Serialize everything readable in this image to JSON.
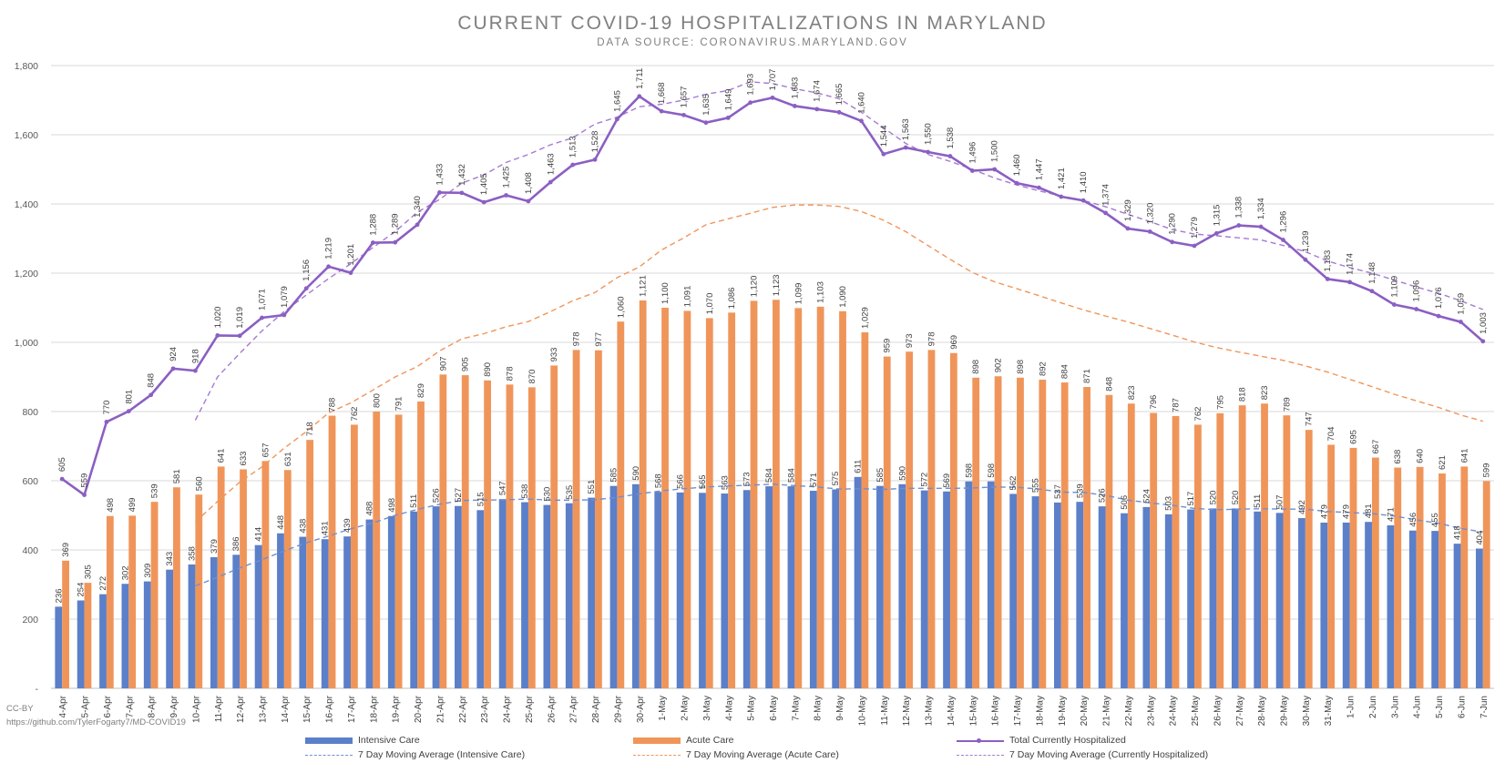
{
  "chart_data": {
    "type": "bar",
    "title": "CURRENT COVID-19 HOSPITALIZATIONS IN MARYLAND",
    "subtitle": "DATA SOURCE: CORONAVIRUS.MARYLAND.GOV",
    "ylim": [
      0,
      1800
    ],
    "y_ticks": [
      0,
      200,
      400,
      600,
      800,
      1000,
      1200,
      1400,
      1600,
      1800
    ],
    "y_tick_labels": [
      "-",
      "200",
      "400",
      "600",
      "800",
      "1,000",
      "1,200",
      "1,400",
      "1,600",
      "1,800"
    ],
    "grid": true,
    "legend_position": "bottom",
    "categories": [
      "4-Apr",
      "5-Apr",
      "6-Apr",
      "7-Apr",
      "8-Apr",
      "9-Apr",
      "10-Apr",
      "11-Apr",
      "12-Apr",
      "13-Apr",
      "14-Apr",
      "15-Apr",
      "16-Apr",
      "17-Apr",
      "18-Apr",
      "19-Apr",
      "20-Apr",
      "21-Apr",
      "22-Apr",
      "23-Apr",
      "24-Apr",
      "25-Apr",
      "26-Apr",
      "27-Apr",
      "28-Apr",
      "29-Apr",
      "30-Apr",
      "1-May",
      "2-May",
      "3-May",
      "4-May",
      "5-May",
      "6-May",
      "7-May",
      "8-May",
      "9-May",
      "10-May",
      "11-May",
      "12-May",
      "13-May",
      "14-May",
      "15-May",
      "16-May",
      "17-May",
      "18-May",
      "19-May",
      "20-May",
      "21-May",
      "22-May",
      "23-May",
      "24-May",
      "25-May",
      "26-May",
      "27-May",
      "28-May",
      "29-May",
      "30-May",
      "31-May",
      "1-Jun",
      "2-Jun",
      "3-Jun",
      "4-Jun",
      "5-Jun",
      "6-Jun",
      "7-Jun"
    ],
    "series": [
      {
        "name": "Intensive Care",
        "kind": "bar",
        "color": "#5b7fc9",
        "values": [
          236,
          254,
          272,
          302,
          309,
          343,
          358,
          379,
          386,
          414,
          448,
          438,
          431,
          439,
          488,
          498,
          511,
          526,
          527,
          515,
          547,
          538,
          530,
          535,
          551,
          585,
          590,
          568,
          566,
          565,
          563,
          573,
          584,
          584,
          571,
          575,
          611,
          585,
          590,
          572,
          569,
          598,
          598,
          562,
          555,
          537,
          539,
          526,
          506,
          524,
          503,
          517,
          520,
          520,
          511,
          507,
          492,
          479,
          479,
          481,
          471,
          456,
          455,
          418,
          404
        ]
      },
      {
        "name": "Acute Care",
        "kind": "bar",
        "color": "#f0955a",
        "values": [
          369,
          305,
          498,
          499,
          539,
          581,
          560,
          641,
          633,
          657,
          631,
          718,
          788,
          762,
          800,
          791,
          829,
          907,
          905,
          890,
          878,
          870,
          933,
          978,
          977,
          1060,
          1121,
          1100,
          1091,
          1070,
          1086,
          1120,
          1123,
          1099,
          1103,
          1090,
          1029,
          959,
          973,
          978,
          969,
          898,
          902,
          898,
          892,
          884,
          871,
          848,
          823,
          796,
          787,
          762,
          795,
          818,
          823,
          789,
          747,
          704,
          695,
          667,
          638,
          640,
          621,
          641,
          599
        ]
      },
      {
        "name": "Total Currently Hospitalized",
        "kind": "line",
        "color": "#8b5fc2",
        "values": [
          605,
          559,
          770,
          801,
          848,
          924,
          918,
          1020,
          1019,
          1071,
          1079,
          1156,
          1219,
          1201,
          1288,
          1289,
          1340,
          1433,
          1432,
          1405,
          1425,
          1408,
          1463,
          1513,
          1528,
          1645,
          1711,
          1668,
          1657,
          1635,
          1649,
          1693,
          1707,
          1683,
          1674,
          1665,
          1640,
          1544,
          1563,
          1550,
          1538,
          1496,
          1500,
          1460,
          1447,
          1421,
          1410,
          1374,
          1329,
          1320,
          1290,
          1279,
          1315,
          1338,
          1334,
          1296,
          1239,
          1183,
          1174,
          1148,
          1109,
          1096,
          1076,
          1059,
          1003
        ]
      },
      {
        "name": "7 Day Moving Average (Intensive Care)",
        "kind": "dashed",
        "color": "#6f8fd0",
        "values": [
          null,
          null,
          null,
          null,
          null,
          null,
          296,
          321,
          348,
          372,
          397,
          421,
          440,
          461,
          478,
          500,
          517,
          532,
          543,
          544,
          545,
          547,
          544,
          544,
          545,
          552,
          562,
          571,
          577,
          582,
          585,
          587,
          590,
          586,
          582,
          576,
          577,
          575,
          578,
          578,
          578,
          579,
          582,
          581,
          576,
          567,
          566,
          558,
          544,
          536,
          529,
          520,
          516,
          518,
          519,
          518,
          518,
          511,
          508,
          505,
          498,
          487,
          477,
          462,
          452
        ]
      },
      {
        "name": "7 Day Moving Average (Acute Care)",
        "kind": "dashed",
        "color": "#f0955a",
        "values": [
          null,
          null,
          null,
          null,
          null,
          null,
          481,
          540,
          596,
          640,
          694,
          742,
          796,
          825,
          862,
          900,
          930,
          975,
          1010,
          1025,
          1045,
          1060,
          1089,
          1120,
          1144,
          1187,
          1218,
          1267,
          1302,
          1340,
          1357,
          1373,
          1390,
          1397,
          1397,
          1393,
          1378,
          1353,
          1320,
          1280,
          1240,
          1202,
          1175,
          1155,
          1135,
          1114,
          1094,
          1076,
          1059,
          1040,
          1021,
          1001,
          985,
          972,
          960,
          948,
          932,
          914,
          893,
          872,
          850,
          831,
          812,
          790,
          772
        ]
      },
      {
        "name": "7 Day Moving Average (Currently Hospitalized)",
        "kind": "dashed",
        "color": "#a57ad2",
        "values": [
          null,
          null,
          null,
          null,
          null,
          null,
          775,
          900,
          968,
          1033,
          1089,
          1137,
          1184,
          1227,
          1274,
          1320,
          1376,
          1413,
          1460,
          1484,
          1520,
          1543,
          1571,
          1591,
          1631,
          1651,
          1681,
          1688,
          1700,
          1717,
          1728,
          1753,
          1748,
          1733,
          1721,
          1704,
          1665,
          1620,
          1575,
          1543,
          1523,
          1500,
          1475,
          1455,
          1438,
          1423,
          1410,
          1392,
          1370,
          1349,
          1326,
          1313,
          1308,
          1302,
          1296,
          1280,
          1262,
          1235,
          1216,
          1200,
          1180,
          1160,
          1142,
          1120,
          1095
        ]
      }
    ],
    "display_smoothing_note": ""
  },
  "legend": {
    "intensive_care": "Intensive Care",
    "acute_care": "Acute Care",
    "total": "Total Currently Hospitalized",
    "ma_intensive": "7 Day Moving Average (Intensive Care)",
    "ma_acute": "7 Day Moving Average (Acute Care)",
    "ma_total": "7 Day Moving Average (Currently Hospitalized)"
  },
  "credit": {
    "license": "CC-BY",
    "url": "https://github.com/TylerFogarty7/MD-COVID19"
  }
}
